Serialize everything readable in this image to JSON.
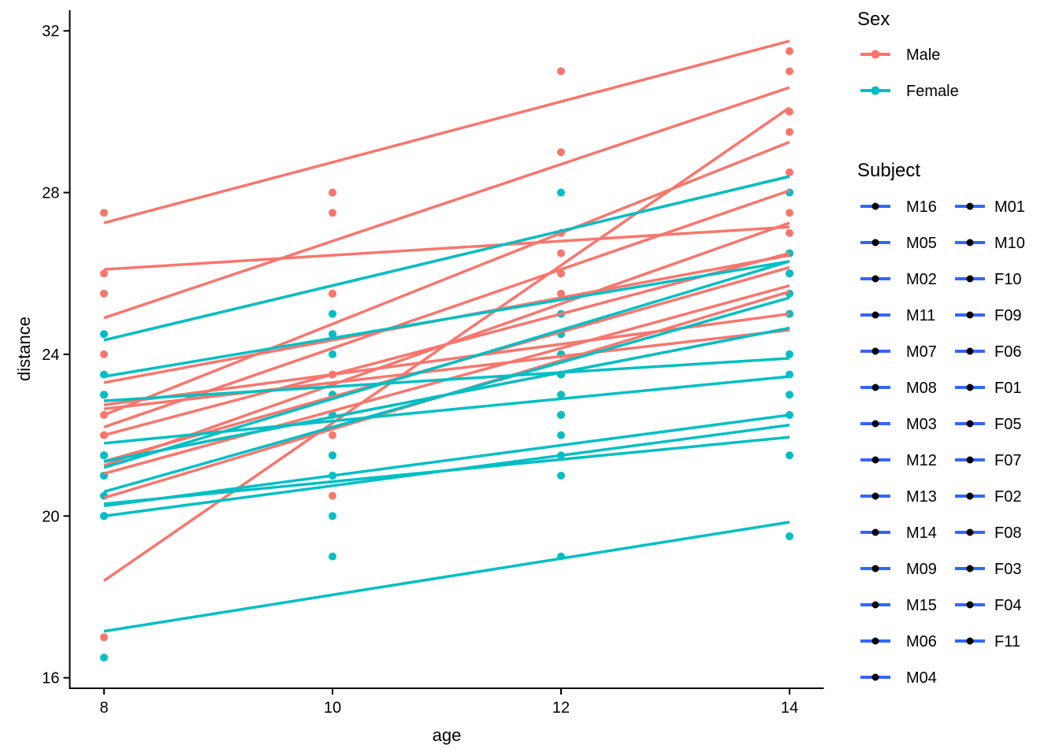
{
  "chart_data": {
    "type": "line",
    "title": "",
    "xlabel": "age",
    "ylabel": "distance",
    "x": [
      8,
      10,
      12,
      14
    ],
    "xticks": [
      8,
      10,
      12,
      14
    ],
    "yticks": [
      16,
      20,
      24,
      28,
      32
    ],
    "xlim": [
      7.7,
      14.3
    ],
    "ylim": [
      15.74,
      32.51
    ],
    "grid": false,
    "legend_position": "right",
    "line_type": "per-subject linear fit with raw points",
    "colors": {
      "Male": "#F8766D",
      "Female": "#00BFC4"
    },
    "series": [
      {
        "name": "M16",
        "sex": "Male",
        "values": [
          22.0,
          21.5,
          23.5,
          25.0
        ]
      },
      {
        "name": "M05",
        "sex": "Male",
        "values": [
          20.0,
          23.5,
          22.5,
          26.0
        ]
      },
      {
        "name": "M02",
        "sex": "Male",
        "values": [
          21.5,
          22.5,
          23.0,
          26.5
        ]
      },
      {
        "name": "M11",
        "sex": "Male",
        "values": [
          23.0,
          23.0,
          23.5,
          25.0
        ]
      },
      {
        "name": "M07",
        "sex": "Male",
        "values": [
          22.0,
          22.0,
          24.5,
          26.5
        ]
      },
      {
        "name": "M08",
        "sex": "Male",
        "values": [
          24.0,
          21.5,
          24.5,
          25.5
        ]
      },
      {
        "name": "M03",
        "sex": "Male",
        "values": [
          23.0,
          22.5,
          24.0,
          27.5
        ]
      },
      {
        "name": "M12",
        "sex": "Male",
        "values": [
          21.5,
          23.5,
          24.0,
          28.0
        ]
      },
      {
        "name": "M13",
        "sex": "Male",
        "values": [
          17.0,
          24.5,
          26.0,
          29.5
        ]
      },
      {
        "name": "M14",
        "sex": "Male",
        "values": [
          22.5,
          25.5,
          25.5,
          26.0
        ]
      },
      {
        "name": "M09",
        "sex": "Male",
        "values": [
          23.0,
          20.5,
          31.0,
          26.0
        ]
      },
      {
        "name": "M15",
        "sex": "Male",
        "values": [
          23.0,
          24.5,
          26.0,
          30.0
        ]
      },
      {
        "name": "M06",
        "sex": "Male",
        "values": [
          24.5,
          25.5,
          27.0,
          28.5
        ]
      },
      {
        "name": "M04",
        "sex": "Male",
        "values": [
          25.5,
          27.5,
          26.5,
          27.0
        ]
      },
      {
        "name": "M01",
        "sex": "Male",
        "values": [
          26.0,
          25.0,
          29.0,
          31.0
        ]
      },
      {
        "name": "M10",
        "sex": "Male",
        "values": [
          27.5,
          28.0,
          31.0,
          31.5
        ]
      },
      {
        "name": "F10",
        "sex": "Female",
        "values": [
          16.5,
          19.0,
          19.0,
          19.5
        ]
      },
      {
        "name": "F09",
        "sex": "Female",
        "values": [
          20.0,
          21.0,
          22.0,
          21.5
        ]
      },
      {
        "name": "F06",
        "sex": "Female",
        "values": [
          20.0,
          21.0,
          21.0,
          22.5
        ]
      },
      {
        "name": "F01",
        "sex": "Female",
        "values": [
          21.0,
          20.0,
          21.5,
          23.0
        ]
      },
      {
        "name": "F05",
        "sex": "Female",
        "values": [
          21.5,
          23.0,
          22.5,
          23.5
        ]
      },
      {
        "name": "F07",
        "sex": "Female",
        "values": [
          21.5,
          22.5,
          23.0,
          25.0
        ]
      },
      {
        "name": "F02",
        "sex": "Female",
        "values": [
          21.0,
          21.5,
          24.0,
          25.5
        ]
      },
      {
        "name": "F08",
        "sex": "Female",
        "values": [
          23.0,
          23.0,
          23.5,
          24.0
        ]
      },
      {
        "name": "F03",
        "sex": "Female",
        "values": [
          20.5,
          24.0,
          24.5,
          26.0
        ]
      },
      {
        "name": "F04",
        "sex": "Female",
        "values": [
          23.5,
          24.5,
          25.0,
          26.5
        ]
      },
      {
        "name": "F11",
        "sex": "Female",
        "values": [
          24.5,
          25.0,
          28.0,
          28.0
        ]
      }
    ]
  },
  "legend": {
    "sex": {
      "title": "Sex",
      "items": [
        {
          "label": "Male",
          "color": "#F8766D"
        },
        {
          "label": "Female",
          "color": "#00BFC4"
        }
      ]
    },
    "subject": {
      "title": "Subject",
      "key_line_color": "#3366FF",
      "key_dot_color": "#000000",
      "columns": [
        [
          "M16",
          "M05",
          "M02",
          "M11",
          "M07",
          "M08",
          "M03",
          "M12",
          "M13",
          "M14",
          "M09",
          "M15",
          "M06",
          "M04"
        ],
        [
          "M01",
          "M10",
          "F10",
          "F09",
          "F06",
          "F01",
          "F05",
          "F07",
          "F02",
          "F08",
          "F03",
          "F04",
          "F11"
        ]
      ]
    }
  }
}
